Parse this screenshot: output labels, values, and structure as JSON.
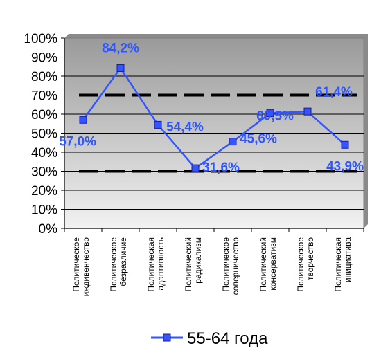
{
  "chart_data": {
    "type": "line",
    "categories": [
      [
        "Политическое",
        "иждивенчество"
      ],
      [
        "Политическое",
        "безразличие"
      ],
      [
        "Политическая",
        "адаптивность"
      ],
      [
        "Политический",
        "радикализм"
      ],
      [
        "Политическое",
        "соперничество"
      ],
      [
        "Политический",
        "консерватизм"
      ],
      [
        "Политическое",
        "творчество"
      ],
      [
        "Политическая",
        "инициатива"
      ]
    ],
    "series": [
      {
        "name": "55-64 года",
        "values": [
          57.0,
          84.2,
          54.4,
          31.6,
          45.6,
          60.5,
          61.4,
          43.9
        ],
        "labels": [
          "57,0%",
          "84,2%",
          "54,4%",
          "31,6%",
          "45,6%",
          "60,5%",
          "61,4%",
          "43,9%"
        ],
        "color": "#3355ff"
      }
    ],
    "reference_lines": [
      70,
      30
    ],
    "ylim": [
      0,
      100
    ],
    "yticks": [
      "0%",
      "10%",
      "20%",
      "30%",
      "40%",
      "50%",
      "60%",
      "70%",
      "80%",
      "90%",
      "100%"
    ],
    "grid": true,
    "legend_position": "bottom",
    "colors": {
      "plot_background_top": "#9a9a9a",
      "plot_background_bottom": "#f2f2f2",
      "series_line": "#3355ff",
      "data_label": "#2e55ff",
      "reference_line": "#000000"
    }
  }
}
